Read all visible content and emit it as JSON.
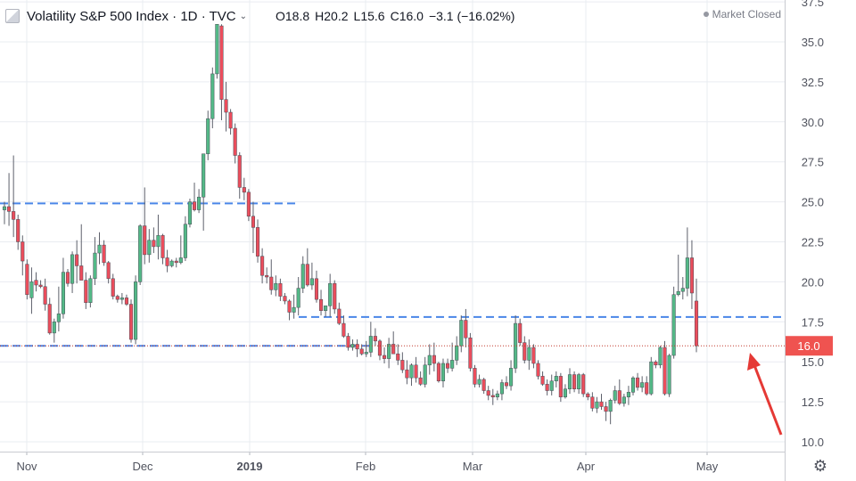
{
  "header": {
    "symbol_name": "Volatility S&P 500 Index",
    "interval": "1D",
    "exchange": "TVC",
    "caret": "⌄",
    "ohlc": {
      "open_label": "O",
      "open": "18.8",
      "high_label": "H",
      "high": "20.2",
      "low_label": "L",
      "low": "15.6",
      "close_label": "C",
      "close": "16.0",
      "change": "−3.1 (−16.02%)"
    },
    "market_status": "Market Closed"
  },
  "colors": {
    "up": "#53b987",
    "down": "#eb4d5c",
    "level_line": "#4a86e8",
    "last_price_line": "#c0392b",
    "last_price_tag": "#ef5350",
    "arrow": "#e53935",
    "grid": "#e9ecf1",
    "axis_text": "#50535e"
  },
  "icons": {
    "settings": "gear-icon",
    "symbol": "symbol-logo-icon",
    "annotation": "arrow-icon"
  },
  "chart_data": {
    "type": "candlestick",
    "title": "Volatility S&P 500 Index",
    "interval": "1D",
    "ylim": [
      10.0,
      37.5
    ],
    "y_ticks": [
      "10.0",
      "12.5",
      "15.0",
      "17.5",
      "20.0",
      "22.5",
      "25.0",
      "27.5",
      "30.0",
      "32.5",
      "35.0",
      "37.5"
    ],
    "x_ticks": [
      "Nov",
      "Dec",
      "2019",
      "Feb",
      "Mar",
      "Apr",
      "May"
    ],
    "grid": true,
    "last_price": 16.0,
    "last_price_label": "16.0",
    "horizontal_levels": [
      {
        "value": 24.9,
        "span": "Oct 2018 – mid Jan 2019"
      },
      {
        "value": 17.8,
        "span": "mid Jan 2019 – May 2019"
      },
      {
        "value": 16.0,
        "span": "Oct 2018 – Feb 2019"
      }
    ],
    "annotation": "arrow pointing to the last candle",
    "candles": [
      [
        24.5,
        25.0,
        23.6,
        24.7
      ],
      [
        24.7,
        26.8,
        23.5,
        24.4
      ],
      [
        24.4,
        27.9,
        22.8,
        23.9
      ],
      [
        23.9,
        24.2,
        22.0,
        22.5
      ],
      [
        22.5,
        22.9,
        20.4,
        21.3
      ],
      [
        21.1,
        21.4,
        18.9,
        19.2
      ],
      [
        19.0,
        20.9,
        18.0,
        20.0
      ],
      [
        20.1,
        20.6,
        19.4,
        19.8
      ],
      [
        19.8,
        20.1,
        19.6,
        19.7
      ],
      [
        19.7,
        20.2,
        18.2,
        18.6
      ],
      [
        18.6,
        19.0,
        16.7,
        16.8
      ],
      [
        16.8,
        17.7,
        16.2,
        17.5
      ],
      [
        17.5,
        19.7,
        16.9,
        18.0
      ],
      [
        18.0,
        21.5,
        17.7,
        20.6
      ],
      [
        20.6,
        20.8,
        19.7,
        19.9
      ],
      [
        19.9,
        21.9,
        19.3,
        21.7
      ],
      [
        21.7,
        22.6,
        19.9,
        21.0
      ],
      [
        21.0,
        23.6,
        20.2,
        20.1
      ],
      [
        20.1,
        20.6,
        18.3,
        18.7
      ],
      [
        18.7,
        20.4,
        18.4,
        20.2
      ],
      [
        20.2,
        22.8,
        19.8,
        21.8
      ],
      [
        21.8,
        23.1,
        21.1,
        22.3
      ],
      [
        22.3,
        22.6,
        21.0,
        21.2
      ],
      [
        21.2,
        21.3,
        19.9,
        20.2
      ],
      [
        20.2,
        20.5,
        18.9,
        19.1
      ],
      [
        19.1,
        19.2,
        18.7,
        18.9
      ],
      [
        18.9,
        19.3,
        18.6,
        19.0
      ],
      [
        19.0,
        19.2,
        18.5,
        18.6
      ],
      [
        18.6,
        18.9,
        16.2,
        16.4
      ],
      [
        16.4,
        20.4,
        16.1,
        20.0
      ],
      [
        20.0,
        23.6,
        19.8,
        23.5
      ],
      [
        23.5,
        25.9,
        21.1,
        21.7
      ],
      [
        21.7,
        23.3,
        21.2,
        22.6
      ],
      [
        22.6,
        23.4,
        21.8,
        22.2
      ],
      [
        22.2,
        24.2,
        21.4,
        22.9
      ],
      [
        22.9,
        23.0,
        21.1,
        21.5
      ],
      [
        21.5,
        22.0,
        20.6,
        21.0
      ],
      [
        21.0,
        21.4,
        20.9,
        21.3
      ],
      [
        21.3,
        21.5,
        20.9,
        21.2
      ],
      [
        21.2,
        22.9,
        21.1,
        21.5
      ],
      [
        21.5,
        24.1,
        21.3,
        23.6
      ],
      [
        23.6,
        25.2,
        23.4,
        25.0
      ],
      [
        25.0,
        26.2,
        24.4,
        24.5
      ],
      [
        24.5,
        25.8,
        24.3,
        25.3
      ],
      [
        25.3,
        28.0,
        23.2,
        28.0
      ],
      [
        28.0,
        30.7,
        27.6,
        30.2
      ],
      [
        30.2,
        33.4,
        29.6,
        33.0
      ],
      [
        33.0,
        36.1,
        32.7,
        36.1
      ],
      [
        36.0,
        36.1,
        30.1,
        31.4
      ],
      [
        31.4,
        32.5,
        29.4,
        30.6
      ],
      [
        30.6,
        30.8,
        29.2,
        29.6
      ],
      [
        29.6,
        29.9,
        27.4,
        27.9
      ],
      [
        27.9,
        28.1,
        25.2,
        25.9
      ],
      [
        25.9,
        26.5,
        25.1,
        25.6
      ],
      [
        25.6,
        25.8,
        23.8,
        24.1
      ],
      [
        24.1,
        25.0,
        21.8,
        23.4
      ],
      [
        23.4,
        23.9,
        21.2,
        21.6
      ],
      [
        21.6,
        22.1,
        19.9,
        20.4
      ],
      [
        20.4,
        20.9,
        19.9,
        20.3
      ],
      [
        20.3,
        21.4,
        19.2,
        19.5
      ],
      [
        19.5,
        20.4,
        19.1,
        19.9
      ],
      [
        19.9,
        20.2,
        18.8,
        19.1
      ],
      [
        19.1,
        19.3,
        18.6,
        18.8
      ],
      [
        18.8,
        18.9,
        17.6,
        18.1
      ],
      [
        18.1,
        19.2,
        17.7,
        18.4
      ],
      [
        18.4,
        20.3,
        17.9,
        19.6
      ],
      [
        19.6,
        21.6,
        19.3,
        21.1
      ],
      [
        21.1,
        22.1,
        19.7,
        19.8
      ],
      [
        19.8,
        21.2,
        19.5,
        20.2
      ],
      [
        20.2,
        20.7,
        18.7,
        18.9
      ],
      [
        18.9,
        19.5,
        17.9,
        18.2
      ],
      [
        18.2,
        18.5,
        17.8,
        18.5
      ],
      [
        18.5,
        20.5,
        17.8,
        19.9
      ],
      [
        19.9,
        20.1,
        18.0,
        18.3
      ],
      [
        18.3,
        18.7,
        17.3,
        17.4
      ],
      [
        17.4,
        17.9,
        16.5,
        16.6
      ],
      [
        16.6,
        16.8,
        15.7,
        15.9
      ],
      [
        15.9,
        16.4,
        15.7,
        16.1
      ],
      [
        16.1,
        16.4,
        15.3,
        15.8
      ],
      [
        15.8,
        16.1,
        15.4,
        15.5
      ],
      [
        15.5,
        16.3,
        15.3,
        15.6
      ],
      [
        15.6,
        17.5,
        15.3,
        16.6
      ],
      [
        16.6,
        17.1,
        16.0,
        16.3
      ],
      [
        16.3,
        16.4,
        15.1,
        15.4
      ],
      [
        15.4,
        15.9,
        14.9,
        15.2
      ],
      [
        15.2,
        16.5,
        14.6,
        16.1
      ],
      [
        16.1,
        16.9,
        15.7,
        15.5
      ],
      [
        15.5,
        16.1,
        14.8,
        15.1
      ],
      [
        15.1,
        15.6,
        14.3,
        14.5
      ],
      [
        14.5,
        15.1,
        13.6,
        14.0
      ],
      [
        14.0,
        14.9,
        13.5,
        14.8
      ],
      [
        14.8,
        15.3,
        13.7,
        14.0
      ],
      [
        14.0,
        14.4,
        13.5,
        13.6
      ],
      [
        13.6,
        15.3,
        13.4,
        14.8
      ],
      [
        14.8,
        16.1,
        14.2,
        15.4
      ],
      [
        15.4,
        16.2,
        14.4,
        14.9
      ],
      [
        14.9,
        15.0,
        13.7,
        13.8
      ],
      [
        13.8,
        15.2,
        13.4,
        14.9
      ],
      [
        14.9,
        15.2,
        14.3,
        14.6
      ],
      [
        14.6,
        16.2,
        14.4,
        15.1
      ],
      [
        15.1,
        16.6,
        14.8,
        16.0
      ],
      [
        16.0,
        17.9,
        15.6,
        17.6
      ],
      [
        17.6,
        18.3,
        15.9,
        16.5
      ],
      [
        16.5,
        16.8,
        14.4,
        14.6
      ],
      [
        14.6,
        14.8,
        13.4,
        13.6
      ],
      [
        13.6,
        14.2,
        13.4,
        13.9
      ],
      [
        13.9,
        14.0,
        13.0,
        13.2
      ],
      [
        13.2,
        13.5,
        12.6,
        12.9
      ],
      [
        12.9,
        13.3,
        12.3,
        12.8
      ],
      [
        12.8,
        13.2,
        12.6,
        13.0
      ],
      [
        13.0,
        13.9,
        12.6,
        13.7
      ],
      [
        13.7,
        14.1,
        13.3,
        13.5
      ],
      [
        13.5,
        15.1,
        13.2,
        14.6
      ],
      [
        14.6,
        17.9,
        14.3,
        17.4
      ],
      [
        17.4,
        17.7,
        16.0,
        16.2
      ],
      [
        16.2,
        16.6,
        14.9,
        15.1
      ],
      [
        15.1,
        16.4,
        14.5,
        15.9
      ],
      [
        15.9,
        16.1,
        14.6,
        14.9
      ],
      [
        14.9,
        15.1,
        13.9,
        14.1
      ],
      [
        14.1,
        14.4,
        13.5,
        13.6
      ],
      [
        13.6,
        13.9,
        12.9,
        13.2
      ],
      [
        13.2,
        14.2,
        12.9,
        13.8
      ],
      [
        13.8,
        14.4,
        13.4,
        14.1
      ],
      [
        14.1,
        14.3,
        12.5,
        12.8
      ],
      [
        12.8,
        13.6,
        12.7,
        13.3
      ],
      [
        13.3,
        14.6,
        13.0,
        14.2
      ],
      [
        14.2,
        14.4,
        13.1,
        13.3
      ],
      [
        13.3,
        14.3,
        13.0,
        14.2
      ],
      [
        14.2,
        14.3,
        12.8,
        13.0
      ],
      [
        13.0,
        13.1,
        12.6,
        12.8
      ],
      [
        12.8,
        13.1,
        11.9,
        12.1
      ],
      [
        12.1,
        12.8,
        11.8,
        12.5
      ],
      [
        12.5,
        13.0,
        12.0,
        12.2
      ],
      [
        12.2,
        12.5,
        11.3,
        11.9
      ],
      [
        11.9,
        12.7,
        11.1,
        12.6
      ],
      [
        12.6,
        13.5,
        12.4,
        13.2
      ],
      [
        13.2,
        13.9,
        12.3,
        12.4
      ],
      [
        12.4,
        13.0,
        12.2,
        12.8
      ],
      [
        12.8,
        13.5,
        12.3,
        13.1
      ],
      [
        13.1,
        14.1,
        12.9,
        14.0
      ],
      [
        14.0,
        14.3,
        13.2,
        13.4
      ],
      [
        13.4,
        14.1,
        13.1,
        13.7
      ],
      [
        13.7,
        14.1,
        12.9,
        13.0
      ],
      [
        13.0,
        15.3,
        12.9,
        15.0
      ],
      [
        15.0,
        15.1,
        14.6,
        14.8
      ],
      [
        14.8,
        16.0,
        14.6,
        15.9
      ],
      [
        15.9,
        16.3,
        12.9,
        13.0
      ],
      [
        13.0,
        15.5,
        12.8,
        15.4
      ],
      [
        15.4,
        19.7,
        15.2,
        19.2
      ],
      [
        19.2,
        21.7,
        19.1,
        19.4
      ],
      [
        19.4,
        20.3,
        18.9,
        19.6
      ],
      [
        19.6,
        23.4,
        19.1,
        21.5
      ],
      [
        21.5,
        22.6,
        18.3,
        19.3
      ],
      [
        18.8,
        20.2,
        15.6,
        16.0
      ]
    ]
  }
}
